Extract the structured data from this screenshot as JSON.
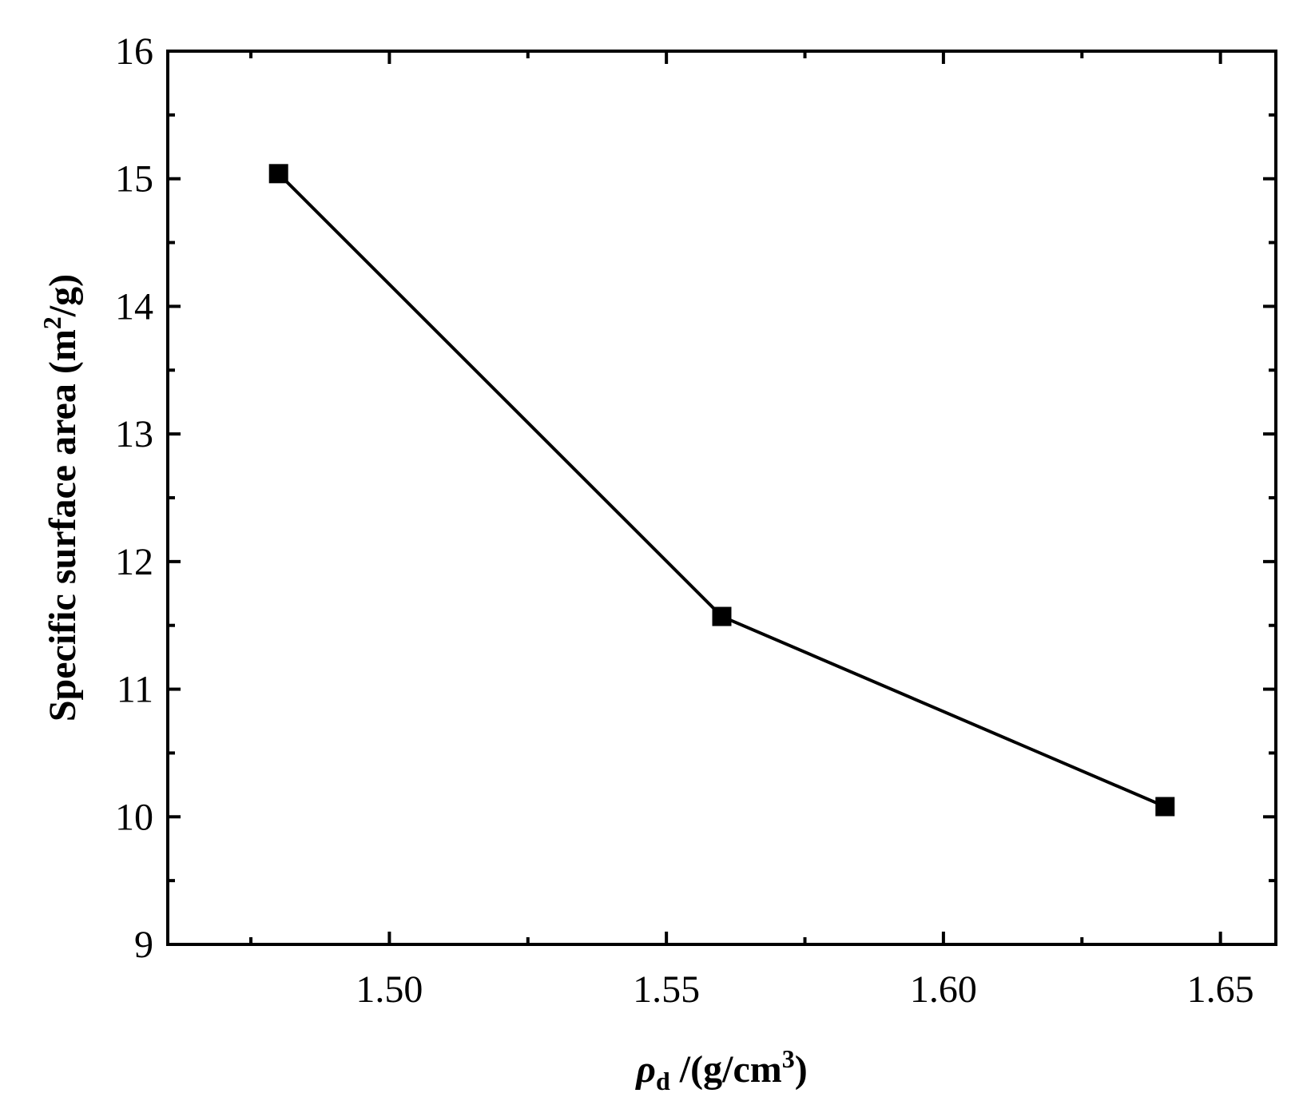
{
  "chart_data": {
    "type": "line",
    "x": [
      1.48,
      1.56,
      1.64
    ],
    "series": [
      {
        "values": [
          15.04,
          11.57,
          10.08
        ],
        "color": "#000000",
        "marker": "square"
      }
    ],
    "xlim": [
      1.46,
      1.66
    ],
    "ylim": [
      9,
      16
    ],
    "xticks": [
      1.5,
      1.55,
      1.6,
      1.65
    ],
    "xtick_labels": [
      "1.50",
      "1.55",
      "1.60",
      "1.65"
    ],
    "yticks": [
      9,
      10,
      11,
      12,
      13,
      14,
      15,
      16
    ],
    "ytick_labels": [
      "9",
      "10",
      "11",
      "12",
      "13",
      "14",
      "15",
      "16"
    ],
    "xlabel": {
      "symbol": "ρ",
      "subscript": "d",
      "unit_prefix": " /(g/cm",
      "superscript": "3",
      "unit_suffix": ")"
    },
    "ylabel": {
      "text": "Specific surface area (m",
      "superscript": "2",
      "suffix": "/g)"
    },
    "grid": false,
    "legend": "none"
  }
}
